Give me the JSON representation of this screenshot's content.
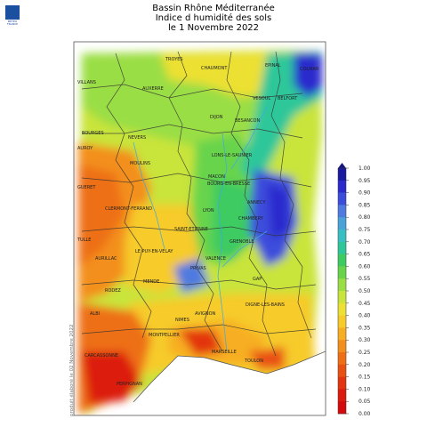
{
  "header": {
    "logo_text": "MÉTÉO FRANCE",
    "title_line1": "Bassin Rhône Méditerranée",
    "title_line2": "Indice d humidité des sols",
    "title_line3": "le 1 Novembre 2022"
  },
  "footer": {
    "credit": "produit élaboré le 02 Novembre 2022"
  },
  "legend": {
    "ticks": [
      "1.00",
      "0.95",
      "0.90",
      "0.85",
      "0.80",
      "0.75",
      "0.70",
      "0.65",
      "0.60",
      "0.55",
      "0.50",
      "0.45",
      "0.40",
      "0.35",
      "0.30",
      "0.25",
      "0.20",
      "0.15",
      "0.10",
      "0.05",
      "0.00"
    ],
    "colors": [
      "#1a1aa0",
      "#2a2acd",
      "#3c4ddc",
      "#4f7adf",
      "#4aa3d8",
      "#37bfc4",
      "#2ec79a",
      "#3ecb62",
      "#68d44c",
      "#9ade45",
      "#c9e43b",
      "#ece033",
      "#f6cb2a",
      "#f7ae23",
      "#f38f1c",
      "#ee6f16",
      "#e95112",
      "#e33410",
      "#dc1a0e",
      "#d40a0c"
    ]
  },
  "cities": [
    {
      "name": "TROYES"
    },
    {
      "name": "CHAUMONT"
    },
    {
      "name": "EPINAL"
    },
    {
      "name": "COLMAR"
    },
    {
      "name": "VILLANS"
    },
    {
      "name": "AUXERRE"
    },
    {
      "name": "VESOUL"
    },
    {
      "name": "BELFORT"
    },
    {
      "name": "DIJON"
    },
    {
      "name": "BESANCON"
    },
    {
      "name": "BOURGES"
    },
    {
      "name": "NEVERS"
    },
    {
      "name": "LONS-LE-SAUNIER"
    },
    {
      "name": "AUROY"
    },
    {
      "name": "MOULINS"
    },
    {
      "name": "MACON"
    },
    {
      "name": "BOURG-EN-BRESSE"
    },
    {
      "name": "GUERET"
    },
    {
      "name": "ANNECY"
    },
    {
      "name": "LYON"
    },
    {
      "name": "CLERMONT-FERRAND"
    },
    {
      "name": "CHAMBERY"
    },
    {
      "name": "SAINT-ETIENNE"
    },
    {
      "name": "GRENOBLE"
    },
    {
      "name": "TULLE"
    },
    {
      "name": "LE PUY-EN-VELAY"
    },
    {
      "name": "VALENCE"
    },
    {
      "name": "AURILLAC"
    },
    {
      "name": "PRIVAS"
    },
    {
      "name": "MENDE"
    },
    {
      "name": "GAP"
    },
    {
      "name": "RODEZ"
    },
    {
      "name": "DIGNE-LES-BAINS"
    },
    {
      "name": "ALBI"
    },
    {
      "name": "AVIGNON"
    },
    {
      "name": "NIMES"
    },
    {
      "name": "MONTPELLIER"
    },
    {
      "name": "MARSEILLE"
    },
    {
      "name": "TOULON"
    },
    {
      "name": "CARCASSONNE"
    },
    {
      "name": "PERPIGNAN"
    }
  ]
}
